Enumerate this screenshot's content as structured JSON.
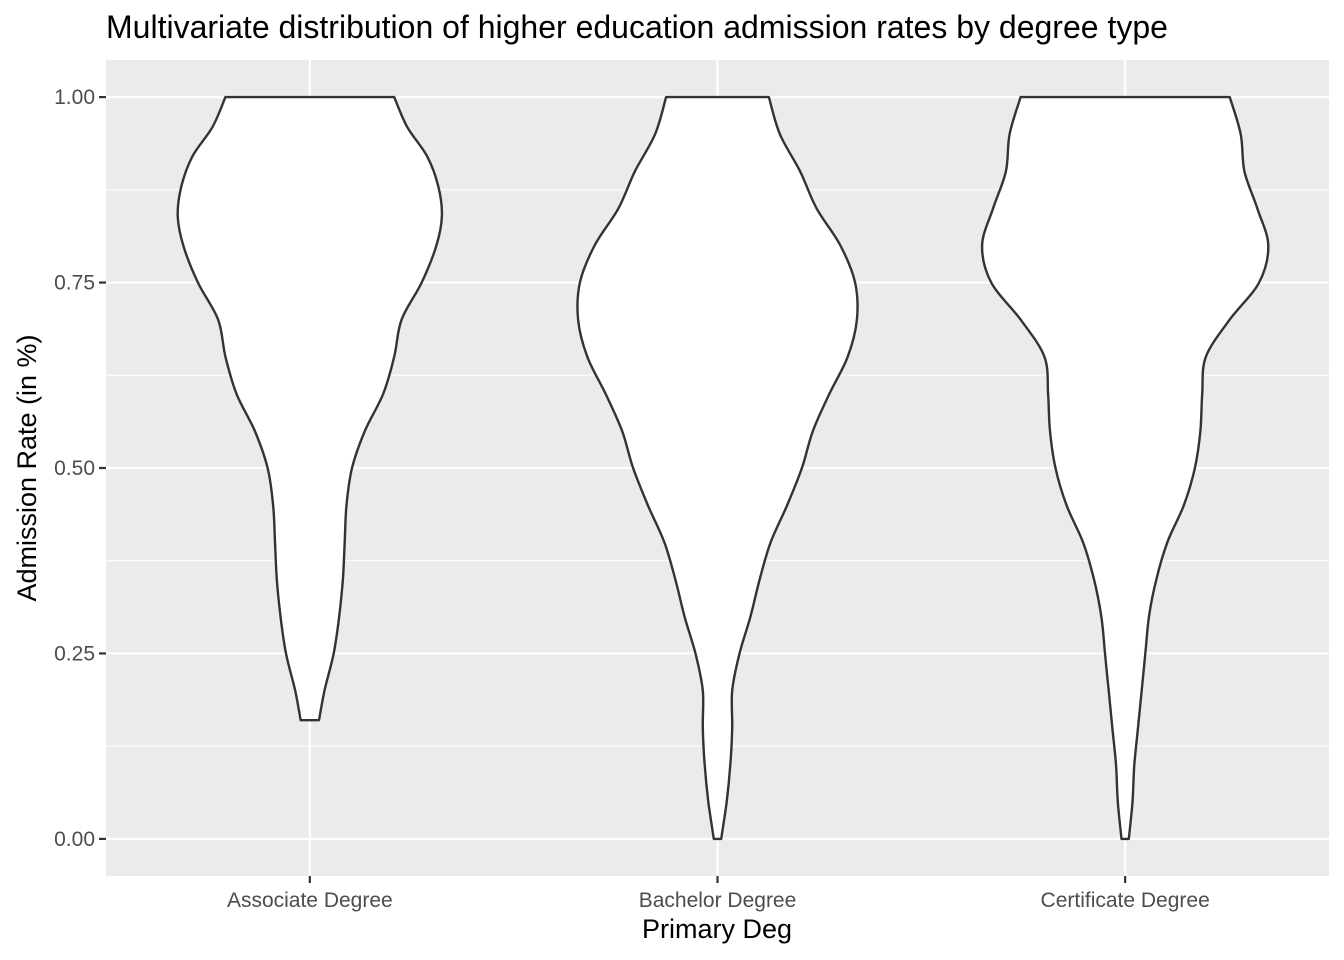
{
  "chart_data": {
    "type": "violin",
    "title": "Multivariate distribution of higher education admission rates by degree type",
    "xlabel": "Primary Deg",
    "ylabel": "Admission Rate (in %)",
    "ylim": [
      -0.05,
      1.05
    ],
    "yticks": [
      0.0,
      0.25,
      0.5,
      0.75,
      1.0
    ],
    "ytick_labels": [
      "0.00",
      "0.25",
      "0.50",
      "0.75",
      "1.00"
    ],
    "categories": [
      "Associate Degree",
      "Bachelor Degree",
      "Certificate Degree"
    ],
    "panel_background": "#ebebeb",
    "grid": true,
    "fill_color": "#ffffff",
    "outline_color": "#333333",
    "violins": [
      {
        "category": "Associate Degree",
        "min": 0.16,
        "max": 1.0,
        "profile": [
          [
            0.16,
            0.05
          ],
          [
            0.2,
            0.08
          ],
          [
            0.25,
            0.13
          ],
          [
            0.3,
            0.16
          ],
          [
            0.35,
            0.18
          ],
          [
            0.4,
            0.19
          ],
          [
            0.45,
            0.2
          ],
          [
            0.5,
            0.23
          ],
          [
            0.55,
            0.3
          ],
          [
            0.6,
            0.4
          ],
          [
            0.65,
            0.46
          ],
          [
            0.7,
            0.5
          ],
          [
            0.75,
            0.61
          ],
          [
            0.8,
            0.69
          ],
          [
            0.84,
            0.72
          ],
          [
            0.88,
            0.7
          ],
          [
            0.92,
            0.64
          ],
          [
            0.96,
            0.53
          ],
          [
            1.0,
            0.46
          ]
        ]
      },
      {
        "category": "Bachelor Degree",
        "min": 0.0,
        "max": 1.0,
        "profile": [
          [
            0.0,
            0.02
          ],
          [
            0.05,
            0.05
          ],
          [
            0.1,
            0.07
          ],
          [
            0.15,
            0.08
          ],
          [
            0.2,
            0.08
          ],
          [
            0.25,
            0.12
          ],
          [
            0.3,
            0.18
          ],
          [
            0.35,
            0.23
          ],
          [
            0.4,
            0.29
          ],
          [
            0.45,
            0.38
          ],
          [
            0.5,
            0.46
          ],
          [
            0.55,
            0.52
          ],
          [
            0.6,
            0.61
          ],
          [
            0.65,
            0.71
          ],
          [
            0.7,
            0.76
          ],
          [
            0.75,
            0.75
          ],
          [
            0.8,
            0.67
          ],
          [
            0.85,
            0.54
          ],
          [
            0.9,
            0.45
          ],
          [
            0.95,
            0.34
          ],
          [
            1.0,
            0.28
          ]
        ]
      },
      {
        "category": "Certificate Degree",
        "min": 0.0,
        "max": 1.0,
        "profile": [
          [
            0.0,
            0.02
          ],
          [
            0.05,
            0.04
          ],
          [
            0.1,
            0.05
          ],
          [
            0.15,
            0.07
          ],
          [
            0.2,
            0.09
          ],
          [
            0.25,
            0.11
          ],
          [
            0.3,
            0.13
          ],
          [
            0.35,
            0.17
          ],
          [
            0.4,
            0.23
          ],
          [
            0.45,
            0.32
          ],
          [
            0.5,
            0.38
          ],
          [
            0.55,
            0.41
          ],
          [
            0.6,
            0.42
          ],
          [
            0.65,
            0.44
          ],
          [
            0.7,
            0.57
          ],
          [
            0.75,
            0.73
          ],
          [
            0.8,
            0.78
          ],
          [
            0.85,
            0.72
          ],
          [
            0.9,
            0.65
          ],
          [
            0.95,
            0.63
          ],
          [
            1.0,
            0.57
          ]
        ]
      }
    ]
  }
}
